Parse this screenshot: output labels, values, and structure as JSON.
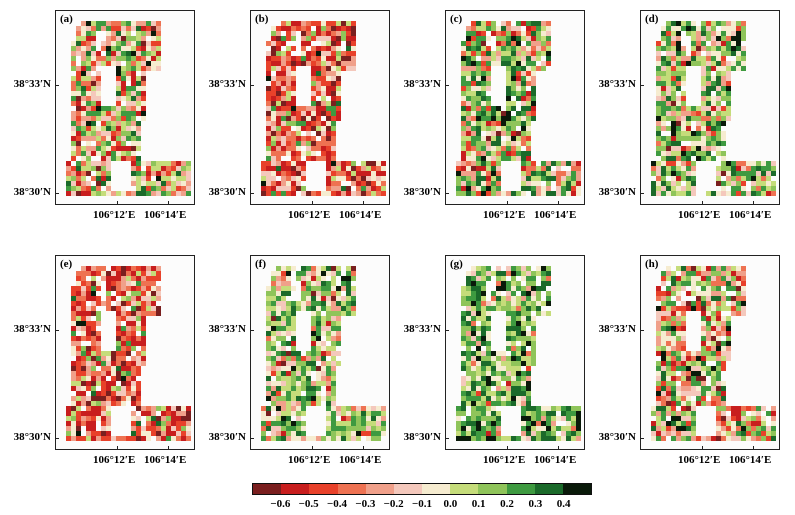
{
  "chart_data": {
    "type": "heatmap",
    "panels": [
      {
        "label": "(a)",
        "distribution": "mixed"
      },
      {
        "label": "(b)",
        "distribution": "mostly-negative"
      },
      {
        "label": "(c)",
        "distribution": "mixed-positive"
      },
      {
        "label": "(d)",
        "distribution": "mostly-positive"
      },
      {
        "label": "(e)",
        "distribution": "mostly-negative"
      },
      {
        "label": "(f)",
        "distribution": "mostly-positive"
      },
      {
        "label": "(g)",
        "distribution": "strong-positive"
      },
      {
        "label": "(h)",
        "distribution": "mixed"
      }
    ],
    "y_ticks": [
      "38°33′N",
      "38°30′N"
    ],
    "x_ticks": [
      "106°12′E",
      "106°14′E"
    ],
    "colorbar": {
      "ticks": [
        "−0.6",
        "−0.5",
        "−0.4",
        "−0.3",
        "−0.2",
        "−0.1",
        "0.0",
        "0.1",
        "0.2",
        "0.3",
        "0.4"
      ],
      "colors": [
        "#7a1f1f",
        "#c81e1e",
        "#e8412a",
        "#ee7252",
        "#f0a08a",
        "#f4c8bc",
        "#f6ecd0",
        "#c5dc7a",
        "#8fc45a",
        "#3e9a40",
        "#1b6a2a",
        "#0a1a0a"
      ]
    }
  }
}
